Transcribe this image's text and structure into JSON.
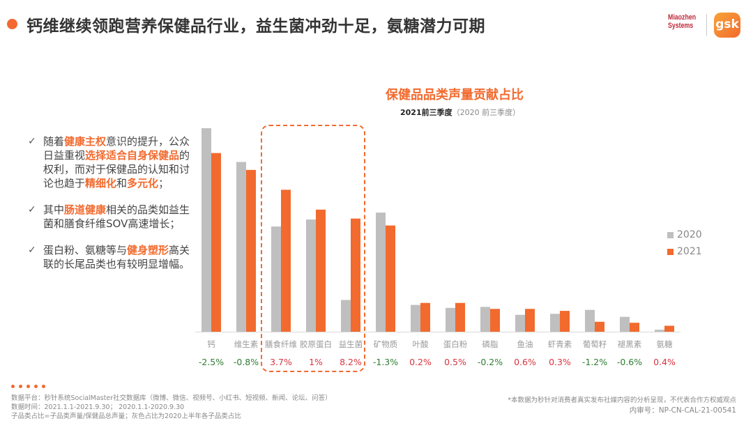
{
  "header": {
    "title": "钙维继续领跑营养保健品行业，益生菌冲劲十足，氨糖潜力可期",
    "logos": [
      "Miaozhen Systems",
      "gsk"
    ]
  },
  "bullets": [
    [
      {
        "t": "随着"
      },
      {
        "t": "健康主权",
        "h": true
      },
      {
        "t": "意识的提升，公众日益重视"
      },
      {
        "t": "选择适合自身保健品",
        "h": true
      },
      {
        "t": "的权利，而对于保健品的认知和讨论也趋于"
      },
      {
        "t": "精细化",
        "h": true
      },
      {
        "t": "和"
      },
      {
        "t": "多元化",
        "h": true
      },
      {
        "t": "；"
      }
    ],
    [
      {
        "t": "其中"
      },
      {
        "t": "肠道健康",
        "h": true
      },
      {
        "t": "相关的品类如益生菌和膳食纤维SOV高速增长；"
      }
    ],
    [
      {
        "t": "蛋白粉、氨糖等与"
      },
      {
        "t": "健身塑形",
        "h": true
      },
      {
        "t": "高关联的长尾品类也有较明显增幅。"
      }
    ]
  ],
  "chart_data": {
    "type": "bar",
    "title": "保健品品类声量贡献占比",
    "subtitle": "2021前三季度",
    "subtitle_paren": "（2020 前三季度）",
    "categories": [
      "钙",
      "维生素",
      "膳食纤维",
      "胶原蛋白",
      "益生菌",
      "矿物质",
      "叶酸",
      "蛋白粉",
      "磷脂",
      "鱼油",
      "虾青素",
      "葡萄籽",
      "褪黑素",
      "氨糖"
    ],
    "series": [
      {
        "name": "2020",
        "color": "#BFBFBF",
        "values": [
          20.5,
          17.1,
          10.6,
          11.3,
          3.2,
          12.0,
          2.7,
          2.4,
          2.5,
          1.7,
          1.8,
          2.2,
          1.5,
          0.2
        ]
      },
      {
        "name": "2021",
        "color": "#F26A2E",
        "values": [
          18.0,
          16.3,
          14.3,
          12.3,
          11.4,
          10.7,
          2.9,
          2.9,
          2.3,
          2.3,
          2.1,
          1.0,
          0.9,
          0.6
        ]
      }
    ],
    "changes": [
      "-2.5%",
      "-0.8%",
      "3.7%",
      "1%",
      "8.2%",
      "-1.3%",
      "0.2%",
      "0.5%",
      "-0.2%",
      "0.6%",
      "0.3%",
      "-1.2%",
      "-0.6%",
      "0.4%"
    ],
    "positive_color": "#D9343F",
    "negative_color": "#2E7D32",
    "ylim": [
      0,
      20.5
    ],
    "grid": false,
    "legend": "right",
    "highlighted_categories": [
      "膳食纤维",
      "胶原蛋白",
      "益生菌"
    ]
  },
  "footer": {
    "source": "数据平台：秒针系统SocialMaster社交数据库（微博、微信、视频号、小红书、短视频、新闻、论坛、问答）",
    "period": "数据时间：2021.1.1-2021.9.30； 2020.1.1-2020.9.30",
    "definition": "子品类占比=子品类声量/保健品总声量；灰色占比为2020上半年各子品类占比",
    "disclaimer": "*本数据为秒针对消费者真实发布社媒内容的分析呈现，不代表合作方权威观点",
    "review_code": "内审号：NP-CN-CAL-21-00541"
  },
  "colors": {
    "accent": "#F26A2E"
  }
}
